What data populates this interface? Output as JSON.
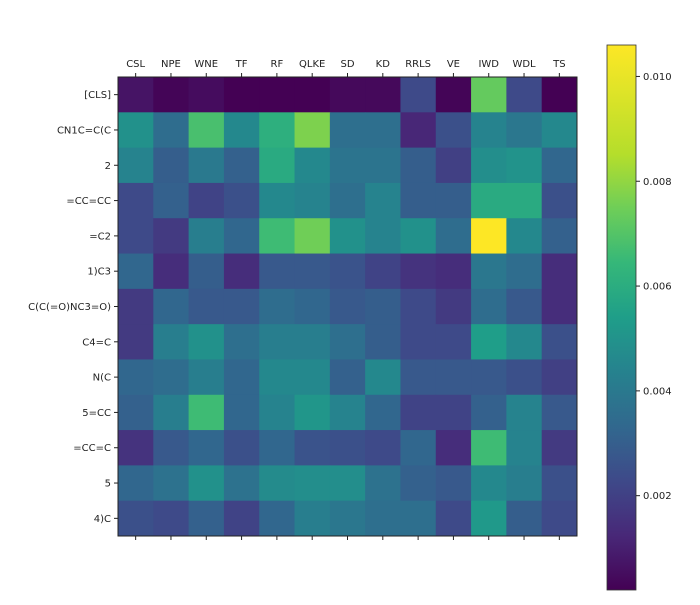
{
  "chart_data": {
    "type": "heatmap",
    "title": "",
    "xlabel": "",
    "ylabel": "",
    "x_categories": [
      "CSL",
      "NPE",
      "WNE",
      "TF",
      "RF",
      "QLKE",
      "SD",
      "KD",
      "RRLS",
      "VE",
      "IWD",
      "WDL",
      "TS"
    ],
    "y_categories": [
      "[CLS]",
      "CN1C=C(C",
      "2",
      "=CC=CC",
      "=C2",
      "1)C3",
      "C(C(=O)NC3=O)",
      "C4=C",
      "N(C",
      "5=CC",
      "=CC=C",
      "5",
      "4)C"
    ],
    "values": [
      [
        0.0007,
        0.0003,
        0.0005,
        0.0002,
        0.0002,
        0.0002,
        0.0004,
        0.0004,
        0.0023,
        0.0003,
        0.0073,
        0.0023,
        0.0002
      ],
      [
        0.0049,
        0.0035,
        0.0068,
        0.0046,
        0.0061,
        0.0077,
        0.0036,
        0.0036,
        0.0012,
        0.0025,
        0.0044,
        0.0039,
        0.0046
      ],
      [
        0.0044,
        0.003,
        0.004,
        0.0031,
        0.0059,
        0.0046,
        0.0038,
        0.0038,
        0.003,
        0.002,
        0.0048,
        0.005,
        0.0033
      ],
      [
        0.0023,
        0.0031,
        0.0021,
        0.0025,
        0.0046,
        0.0044,
        0.0036,
        0.0044,
        0.003,
        0.003,
        0.0059,
        0.0059,
        0.0025
      ],
      [
        0.0023,
        0.0018,
        0.0042,
        0.0033,
        0.0066,
        0.0075,
        0.0049,
        0.0044,
        0.0049,
        0.0035,
        0.0106,
        0.0046,
        0.0031
      ],
      [
        0.0033,
        0.0014,
        0.003,
        0.0014,
        0.0028,
        0.0028,
        0.0026,
        0.0021,
        0.0016,
        0.0014,
        0.0039,
        0.0035,
        0.0014
      ],
      [
        0.0018,
        0.0033,
        0.0028,
        0.0028,
        0.0035,
        0.0033,
        0.0028,
        0.003,
        0.0023,
        0.0018,
        0.0035,
        0.0028,
        0.0014
      ],
      [
        0.0018,
        0.0042,
        0.0049,
        0.0036,
        0.0042,
        0.0042,
        0.0036,
        0.003,
        0.0023,
        0.0023,
        0.0054,
        0.0046,
        0.0025
      ],
      [
        0.0033,
        0.0035,
        0.0042,
        0.0033,
        0.0046,
        0.0046,
        0.0031,
        0.0046,
        0.0028,
        0.0028,
        0.0028,
        0.0025,
        0.002
      ],
      [
        0.0031,
        0.0042,
        0.0066,
        0.0033,
        0.0044,
        0.0051,
        0.0044,
        0.0033,
        0.0021,
        0.0021,
        0.0031,
        0.0044,
        0.0028
      ],
      [
        0.0016,
        0.0028,
        0.0033,
        0.0025,
        0.0033,
        0.0026,
        0.0025,
        0.0023,
        0.0033,
        0.0014,
        0.0066,
        0.0044,
        0.0018
      ],
      [
        0.0033,
        0.0037,
        0.0049,
        0.0037,
        0.0047,
        0.0048,
        0.0048,
        0.0037,
        0.0031,
        0.0028,
        0.0046,
        0.0042,
        0.0025
      ],
      [
        0.0025,
        0.0023,
        0.0031,
        0.0021,
        0.0033,
        0.0042,
        0.0039,
        0.0036,
        0.0036,
        0.0023,
        0.0052,
        0.003,
        0.0023
      ]
    ],
    "colormap": "viridis",
    "color_range": [
      0.0002,
      0.0106
    ],
    "colorbar": {
      "ticks": [
        0.002,
        0.004,
        0.006,
        0.008,
        0.01
      ],
      "tick_labels": [
        "0.002",
        "0.004",
        "0.006",
        "0.008",
        "0.010"
      ]
    },
    "x_axis_position": "top",
    "grid": false
  }
}
